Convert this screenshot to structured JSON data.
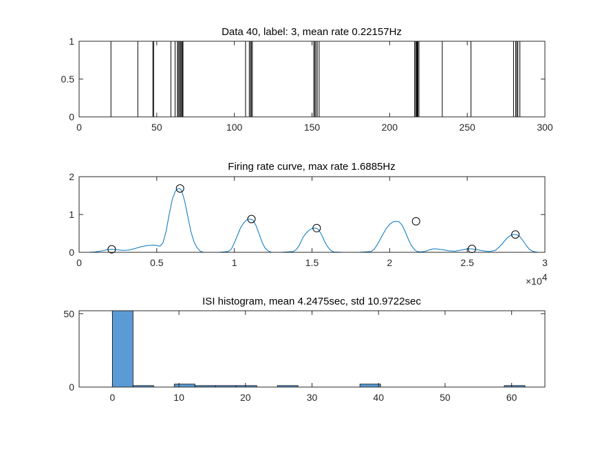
{
  "figure": {
    "background": "#ffffff",
    "axis_color": "#262626"
  },
  "chart_data": [
    {
      "type": "spike-raster",
      "title": "Data 40, label: 3, mean rate 0.22157Hz",
      "xlim": [
        0,
        300
      ],
      "ylim": [
        0,
        1
      ],
      "xticks": [
        0,
        50,
        100,
        150,
        200,
        250,
        300
      ],
      "yticks": [
        0,
        0.5,
        1
      ],
      "ytick_labels": [
        "0",
        "0.5",
        "1"
      ],
      "line_color": "#000000",
      "spikes": [
        20.5,
        37.8,
        47.5,
        48.0,
        59.1,
        61.8,
        63.3,
        63.9,
        64.7,
        65.2,
        65.9,
        66.5,
        66.9,
        107.2,
        109.6,
        110.4,
        110.9,
        111.6,
        151.1,
        151.8,
        152.5,
        153.4,
        154.6,
        216.1,
        216.8,
        217.3,
        217.8,
        218.2,
        218.9,
        233.9,
        252.4,
        279.8,
        281.2,
        281.9,
        282.6,
        283.9
      ]
    },
    {
      "type": "line",
      "title": "Firing rate curve, max rate 1.6885Hz",
      "xlim": [
        0,
        30000
      ],
      "ylim": [
        0,
        2
      ],
      "xticks": [
        0,
        5000,
        10000,
        15000,
        20000,
        25000,
        30000
      ],
      "xtick_labels": [
        "0",
        "0.5",
        "1",
        "1.5",
        "2",
        "2.5",
        "3"
      ],
      "x_exponent_base": "×10",
      "x_exponent_power": "4",
      "yticks": [
        0,
        1,
        2
      ],
      "ytick_labels": [
        "0",
        "1",
        "2"
      ],
      "line_color": "#0072BD",
      "marker_color": "#000000",
      "x": [
        0,
        600,
        1000,
        1500,
        1800,
        2100,
        2400,
        2800,
        3200,
        3600,
        4000,
        4400,
        4800,
        5000,
        5200,
        5400,
        5600,
        5800,
        6000,
        6200,
        6400,
        6500,
        6600,
        6800,
        7000,
        7200,
        7400,
        7600,
        7800,
        8000,
        9000,
        9600,
        9800,
        10000,
        10200,
        10400,
        10600,
        10800,
        11000,
        11100,
        11200,
        11400,
        11600,
        11800,
        12000,
        12200,
        12400,
        13000,
        13800,
        14000,
        14200,
        14400,
        14600,
        14800,
        15000,
        15200,
        15300,
        15400,
        15600,
        15800,
        16000,
        16200,
        16400,
        17000,
        18000,
        18800,
        19000,
        19200,
        19400,
        19600,
        19800,
        20000,
        20200,
        20400,
        20600,
        20800,
        21000,
        21200,
        21400,
        21600,
        21700,
        21800,
        22000,
        22200,
        22400,
        22600,
        22800,
        23000,
        23400,
        23800,
        24200,
        24600,
        25000,
        25300,
        25600,
        26000,
        26400,
        26800,
        27000,
        27200,
        27400,
        27600,
        27800,
        28000,
        28100,
        28200,
        28400,
        28600,
        28800,
        29000,
        29200,
        29400,
        29600,
        30000
      ],
      "y": [
        0,
        0,
        0.01,
        0.04,
        0.07,
        0.08,
        0.07,
        0.05,
        0.06,
        0.1,
        0.15,
        0.18,
        0.19,
        0.18,
        0.16,
        0.25,
        0.55,
        1.0,
        1.4,
        1.62,
        1.69,
        1.68,
        1.64,
        1.35,
        0.95,
        0.55,
        0.28,
        0.12,
        0.03,
        0,
        0,
        0.02,
        0.08,
        0.25,
        0.45,
        0.65,
        0.78,
        0.86,
        0.88,
        0.87,
        0.85,
        0.7,
        0.48,
        0.25,
        0.1,
        0.03,
        0,
        0,
        0.02,
        0.08,
        0.2,
        0.38,
        0.5,
        0.58,
        0.63,
        0.64,
        0.63,
        0.61,
        0.48,
        0.3,
        0.15,
        0.05,
        0.01,
        0,
        0,
        0.02,
        0.08,
        0.2,
        0.35,
        0.5,
        0.64,
        0.74,
        0.8,
        0.82,
        0.81,
        0.72,
        0.55,
        0.35,
        0.18,
        0.07,
        0.04,
        0.02,
        0.01,
        0.02,
        0.04,
        0.07,
        0.09,
        0.09,
        0.07,
        0.04,
        0.03,
        0.06,
        0.09,
        0.09,
        0.07,
        0.04,
        0.02,
        0.05,
        0.12,
        0.2,
        0.3,
        0.39,
        0.45,
        0.47,
        0.47,
        0.46,
        0.41,
        0.3,
        0.18,
        0.08,
        0.03,
        0.01,
        0,
        0
      ],
      "peaks_x": [
        2100,
        6500,
        11100,
        15300,
        21700,
        25300,
        28100
      ],
      "peaks_y": [
        0.08,
        1.6885,
        0.88,
        0.64,
        0.82,
        0.09,
        0.47
      ]
    },
    {
      "type": "bar",
      "title": "ISI histogram, mean 4.2475sec, std 10.9722sec",
      "xlim": [
        -5,
        65
      ],
      "ylim": [
        0,
        52
      ],
      "xticks": [
        0,
        10,
        20,
        30,
        40,
        50,
        60
      ],
      "yticks": [
        0,
        50
      ],
      "ytick_labels": [
        "0",
        "50"
      ],
      "bar_color": "#5B9BD5",
      "edge_color": "#000000",
      "bin_edges": [
        0,
        3.1,
        6.2,
        9.3,
        12.4,
        15.5,
        18.6,
        21.7,
        24.8,
        27.9,
        31.0,
        34.1,
        37.2,
        40.3,
        43.4,
        46.5,
        49.6,
        52.7,
        55.8,
        58.9,
        62.0
      ],
      "values": [
        52,
        1,
        0,
        2,
        1,
        1,
        1,
        0,
        1,
        0,
        0,
        0,
        2,
        0,
        0,
        0,
        0,
        0,
        0,
        1
      ]
    }
  ]
}
